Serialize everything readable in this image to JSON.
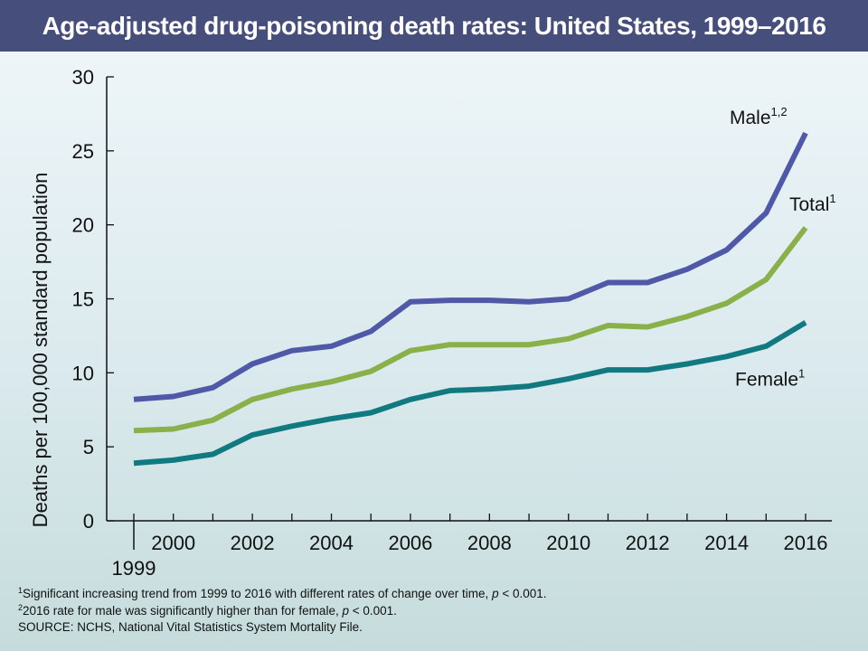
{
  "chart_data": {
    "type": "line",
    "title": "Age-adjusted drug-poisoning death rates: United States, 1999–2016",
    "ylabel": "Deaths per 100,000 standard population",
    "xlabel": "",
    "ylim": [
      0,
      30
    ],
    "yticks": [
      0,
      5,
      10,
      15,
      20,
      25,
      30
    ],
    "xlim": [
      1999,
      2016
    ],
    "xtick_labels": [
      "2000",
      "2002",
      "2004",
      "2006",
      "2008",
      "2010",
      "2012",
      "2014",
      "2016"
    ],
    "xtick_extra_label": "1999",
    "grid": false,
    "x": [
      1999,
      2000,
      2001,
      2002,
      2003,
      2004,
      2005,
      2006,
      2007,
      2008,
      2009,
      2010,
      2011,
      2012,
      2013,
      2014,
      2015,
      2016
    ],
    "series": [
      {
        "name": "Male",
        "label_sup": "1,2",
        "color": "#5058a8",
        "values": [
          8.2,
          8.4,
          9.0,
          10.6,
          11.5,
          11.8,
          12.8,
          14.8,
          14.9,
          14.9,
          14.8,
          15.0,
          16.1,
          16.1,
          17.0,
          18.3,
          20.8,
          26.2
        ]
      },
      {
        "name": "Total",
        "label_sup": "1",
        "color": "#8ab04a",
        "values": [
          6.1,
          6.2,
          6.8,
          8.2,
          8.9,
          9.4,
          10.1,
          11.5,
          11.9,
          11.9,
          11.9,
          12.3,
          13.2,
          13.1,
          13.8,
          14.7,
          16.3,
          19.8
        ]
      },
      {
        "name": "Female",
        "label_sup": "1",
        "color": "#117a80",
        "values": [
          3.9,
          4.1,
          4.5,
          5.8,
          6.4,
          6.9,
          7.3,
          8.2,
          8.8,
          8.9,
          9.1,
          9.6,
          10.2,
          10.2,
          10.6,
          11.1,
          11.8,
          13.4
        ]
      }
    ]
  },
  "notes": {
    "note1_sup": "1",
    "note1_a": "Significant increasing trend from 1999 to 2016 with different rates of change over time, ",
    "note1_p": "p",
    "note1_b": " < 0.001.",
    "note2_sup": "2",
    "note2_a": "2016 rate for male was significantly higher than for female, ",
    "note2_p": "p",
    "note2_b": " < 0.001.",
    "source": "SOURCE: NCHS, National Vital Statistics System Mortality File."
  }
}
